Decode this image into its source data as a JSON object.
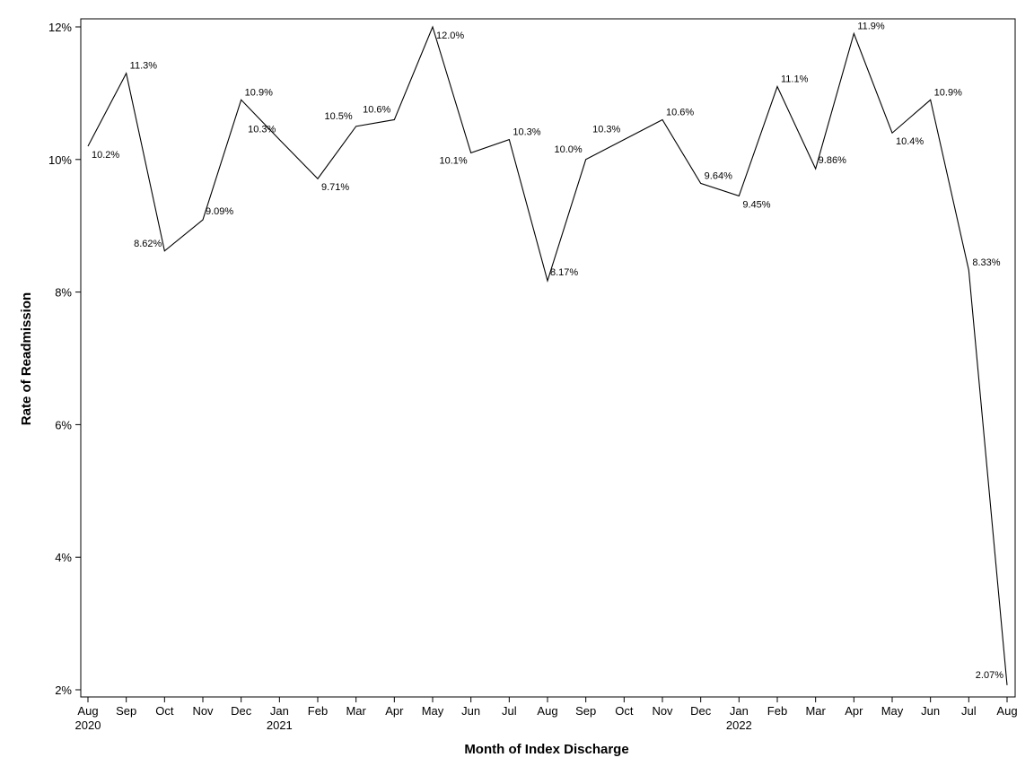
{
  "chart_data": {
    "type": "line",
    "xlabel": "Month of Index Discharge",
    "ylabel": "Rate of Readmission",
    "ylim": [
      2,
      12
    ],
    "yticks": [
      "2%",
      "4%",
      "6%",
      "8%",
      "10%",
      "12%"
    ],
    "ytick_values": [
      2,
      4,
      6,
      8,
      10,
      12
    ],
    "categories": [
      "Aug",
      "Sep",
      "Oct",
      "Nov",
      "Dec",
      "Jan",
      "Feb",
      "Mar",
      "Apr",
      "May",
      "Jun",
      "Jul",
      "Aug",
      "Sep",
      "Oct",
      "Nov",
      "Dec",
      "Jan",
      "Feb",
      "Mar",
      "Apr",
      "May",
      "Jun",
      "Jul",
      "Aug"
    ],
    "year_labels": {
      "0": "2020",
      "5": "2021",
      "17": "2022"
    },
    "values": [
      10.2,
      11.3,
      8.62,
      9.09,
      10.9,
      10.3,
      9.71,
      10.5,
      10.6,
      12.0,
      10.1,
      10.3,
      8.17,
      10.0,
      10.3,
      10.6,
      9.64,
      9.45,
      11.1,
      9.86,
      11.9,
      10.4,
      10.9,
      8.33,
      2.07
    ],
    "data_labels": [
      "10.2%",
      "11.3%",
      "8.62%",
      "9.09%",
      "10.9%",
      "10.3%",
      "9.71%",
      "10.5%",
      "10.6%",
      "12.0%",
      "10.1%",
      "10.3%",
      "8.17%",
      "10.0%",
      "10.3%",
      "10.6%",
      "9.64%",
      "9.45%",
      "11.1%",
      "9.86%",
      "11.9%",
      "10.4%",
      "10.9%",
      "8.33%",
      "2.07%"
    ],
    "grid": false,
    "legend": "none",
    "line_color": "#000000"
  }
}
